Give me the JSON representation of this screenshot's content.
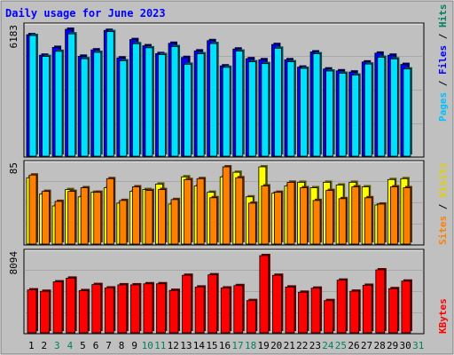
{
  "chart_data": {
    "type": "bar",
    "title": "Daily usage for June 2023",
    "days": [
      "1",
      "2",
      "3",
      "4",
      "5",
      "6",
      "7",
      "8",
      "9",
      "10",
      "11",
      "12",
      "13",
      "14",
      "15",
      "16",
      "17",
      "18",
      "19",
      "20",
      "21",
      "22",
      "23",
      "24",
      "25",
      "26",
      "27",
      "28",
      "29",
      "30",
      "31"
    ],
    "weekend_days": [
      "3",
      "4",
      "10",
      "11",
      "17",
      "18",
      "24",
      "25",
      "31"
    ],
    "panels": [
      {
        "id": "hits",
        "scale_label": "6183",
        "scale_max": 6183,
        "legend": [
          {
            "label": "Hits",
            "color": "#00805c"
          },
          {
            "label": "Files",
            "color": "#0000ff"
          },
          {
            "label": "Pages",
            "color": "#00c0ff"
          }
        ],
        "series": [
          {
            "name": "Hits",
            "color": "#2a3bb5",
            "values": [
              5920,
              4920,
              5300,
              6183,
              4870,
              5180,
              6130,
              4790,
              5680,
              5380,
              5000,
              5500,
              4810,
              5130,
              5630,
              4400,
              5220,
              4750,
              4700,
              5440,
              4700,
              4340,
              5080,
              4250,
              4160,
              4100,
              4590,
              5020,
              4920,
              4470,
              0
            ]
          },
          {
            "name": "Files",
            "color": "#0000ff",
            "values": [
              5920,
              4920,
              5300,
              6183,
              4870,
              5180,
              6130,
              4790,
              5680,
              5380,
              5000,
              5500,
              4810,
              5130,
              5630,
              4400,
              5220,
              4750,
              4700,
              5440,
              4700,
              4340,
              5080,
              4250,
              4160,
              4100,
              4590,
              5020,
              4920,
              4470,
              0
            ]
          },
          {
            "name": "Pages",
            "color": "#00e0ff",
            "values": [
              5880,
              4860,
              5110,
              5960,
              4750,
              5060,
              6070,
              4650,
              5480,
              5280,
              4950,
              5340,
              4480,
              4990,
              5490,
              4330,
              5120,
              4600,
              4510,
              5260,
              4600,
              4280,
              4990,
              4150,
              4040,
              3950,
              4490,
              4820,
              4740,
              4250,
              0
            ]
          }
        ]
      },
      {
        "id": "visits",
        "scale_label": "85",
        "scale_max": 85,
        "legend": [
          {
            "label": "Visits",
            "color": "#e0d000"
          },
          {
            "label": "Sites",
            "color": "#ff8000"
          }
        ],
        "series": [
          {
            "name": "Visits",
            "color": "#ffff00",
            "values": [
              73,
              55,
              42,
              60,
              52,
              57,
              62,
              45,
              58,
              60,
              66,
              44,
              74,
              64,
              57,
              74,
              79,
              52,
              85,
              56,
              64,
              68,
              62,
              68,
              65,
              68,
              63,
              43,
              71,
              72,
              0
            ]
          },
          {
            "name": "Sites",
            "color": "#ff8000",
            "values": [
              76,
              58,
              47,
              58,
              62,
              57,
              72,
              48,
              63,
              59,
              60,
              49,
              71,
              72,
              51,
              85,
              73,
              45,
              64,
              57,
              68,
              62,
              48,
              59,
              50,
              63,
              51,
              44,
              63,
              62,
              0
            ]
          }
        ]
      },
      {
        "id": "kbytes",
        "scale_label": "8094",
        "scale_max": 8094,
        "legend": [
          {
            "label": "KBytes",
            "color": "#ff0000"
          }
        ],
        "series": [
          {
            "name": "KBytes",
            "color": "#ff0000",
            "values": [
              4500,
              4350,
              5340,
              5730,
              4420,
              5060,
              4700,
              5030,
              5030,
              5140,
              5140,
              4450,
              6030,
              4800,
              6080,
              4700,
              4950,
              3380,
              8094,
              6030,
              4800,
              4250,
              4680,
              3380,
              5520,
              4360,
              4980,
              6600,
              4630,
              5420,
              0
            ]
          }
        ]
      }
    ]
  }
}
